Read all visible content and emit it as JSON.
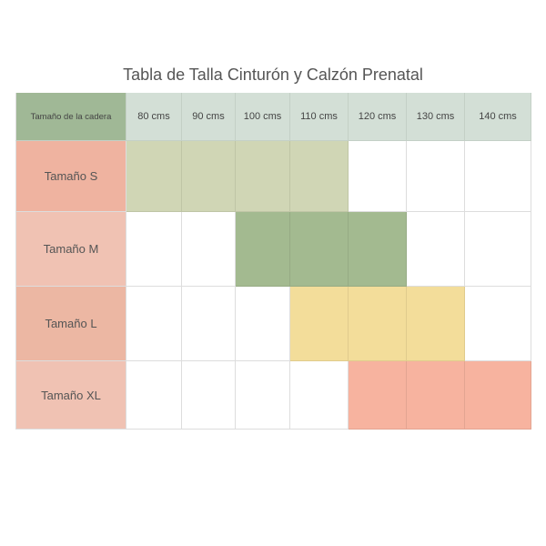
{
  "title": "Tabla de Talla Cinturón y Calzón Prenatal",
  "header": {
    "corner": "Tamaño de la cadera",
    "columns": [
      "80 cms",
      "90 cms",
      "100 cms",
      "110 cms",
      "120 cms",
      "130 cms",
      "140 cms"
    ]
  },
  "rows": [
    {
      "label": "Tamaño S",
      "key": "S",
      "fill": "#d0d6b5",
      "range": [
        0,
        3
      ]
    },
    {
      "label": "Tamaño M",
      "key": "M",
      "fill": "#a3ba90",
      "range": [
        2,
        4
      ]
    },
    {
      "label": "Tamaño L",
      "key": "L",
      "fill": "#f3dd9a",
      "range": [
        3,
        5
      ]
    },
    {
      "label": "Tamaño XL",
      "key": "XL",
      "fill": "#f7b39f",
      "range": [
        4,
        6
      ]
    }
  ]
}
